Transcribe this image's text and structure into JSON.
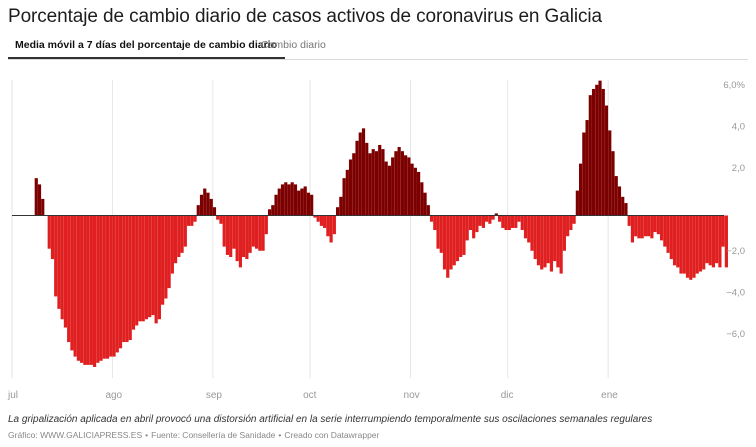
{
  "title": "Porcentaje de cambio diario de casos activos de coronavirus en Galicia",
  "tabs": [
    {
      "label": "Media móvil a 7 días del porcentaje de cambio diario",
      "active": true
    },
    {
      "label": "Cambio diario",
      "active": false
    }
  ],
  "note": "La gripalización aplicada en abril provocó una distorsión artificial en la serie interrumpiendo temporalmente sus oscilaciones semanales regulares",
  "footer": {
    "graphic": "Gráfico: WWW.GALICIAPRESS.ES",
    "source": "Fuente: Consellería de Sanidade",
    "credit": "Creado con Datawrapper",
    "separator": "•"
  },
  "colors": {
    "positive": "#7d0000",
    "negative": "#e02020",
    "gridline": "#e6e6e6",
    "axis_text": "#999999",
    "zero_line": "#333333"
  },
  "chart_data": {
    "type": "bar",
    "title": "Porcentaje de cambio diario de casos activos de coronavirus en Galicia",
    "series_name": "Media móvil a 7 días del porcentaje de cambio diario",
    "xlabel": "",
    "ylabel": "",
    "ylim": [
      -7.4,
      6.4
    ],
    "y_ticks": [
      {
        "value": 6,
        "label": "6,0%"
      },
      {
        "value": 4,
        "label": "4,0"
      },
      {
        "value": 2,
        "label": "2,0"
      },
      {
        "value": 0,
        "label": ""
      },
      {
        "value": -2,
        "label": "−2,0"
      },
      {
        "value": -4,
        "label": "−4,0"
      },
      {
        "value": -6,
        "label": "−6,0"
      }
    ],
    "x_ticks": [
      {
        "index": 0,
        "label": "jul"
      },
      {
        "index": 31,
        "label": "ago"
      },
      {
        "index": 62,
        "label": "sep"
      },
      {
        "index": 92,
        "label": "oct"
      },
      {
        "index": 123,
        "label": "nov"
      },
      {
        "index": 153,
        "label": "dic"
      },
      {
        "index": 184,
        "label": "ene"
      }
    ],
    "start": "jul",
    "values": [
      0,
      0,
      0,
      0,
      0,
      0,
      0,
      1.8,
      1.5,
      0.8,
      0,
      -1.6,
      -2.1,
      -3.9,
      -4.5,
      -5.0,
      -5.4,
      -6.1,
      -6.5,
      -6.8,
      -7.0,
      -7.1,
      -7.2,
      -7.2,
      -7.2,
      -7.3,
      -7.1,
      -7.0,
      -6.9,
      -6.9,
      -6.8,
      -6.8,
      -6.6,
      -6.4,
      -6.1,
      -6.1,
      -6.0,
      -5.5,
      -5.3,
      -5.1,
      -5.1,
      -5.0,
      -4.9,
      -4.8,
      -5.2,
      -5.0,
      -4.3,
      -4.0,
      -3.5,
      -2.8,
      -2.3,
      -2.0,
      -1.8,
      -1.5,
      -0.5,
      -0.5,
      -0.3,
      0.5,
      1.0,
      1.3,
      1.1,
      0.8,
      0.4,
      -0.2,
      -0.4,
      -1.5,
      -1.9,
      -2.0,
      -1.6,
      -2.2,
      -2.5,
      -2.0,
      -2.1,
      -1.8,
      -1.5,
      -1.6,
      -1.7,
      -1.7,
      -0.9,
      0.3,
      0.5,
      1.0,
      1.3,
      1.5,
      1.6,
      1.5,
      1.6,
      1.5,
      1.2,
      1.3,
      1.4,
      1.1,
      1.0,
      -0.1,
      -0.3,
      -0.5,
      -0.6,
      -1.0,
      -1.3,
      -0.9,
      0.4,
      0.9,
      1.8,
      2.2,
      2.7,
      3.0,
      3.6,
      4.0,
      4.2,
      3.5,
      3.0,
      3.2,
      3.1,
      3.4,
      3.2,
      2.6,
      2.4,
      2.8,
      3.1,
      3.3,
      3.1,
      2.9,
      2.8,
      2.5,
      2.3,
      2.1,
      1.6,
      1.1,
      0.5,
      -0.3,
      -0.7,
      -1.6,
      -1.8,
      -2.6,
      -3.0,
      -2.6,
      -2.4,
      -2.2,
      -2.0,
      -1.9,
      -1.2,
      -0.7,
      -1.1,
      -0.8,
      -0.5,
      -0.6,
      -0.3,
      -0.4,
      -0.2,
      0.1,
      -0.3,
      -0.6,
      -0.7,
      -0.7,
      -0.6,
      -0.6,
      -0.3,
      -0.7,
      -1.1,
      -1.3,
      -1.7,
      -2.1,
      -2.4,
      -2.6,
      -2.5,
      -2.3,
      -2.7,
      -2.2,
      -2.5,
      -2.8,
      -1.7,
      -1.0,
      -0.7,
      -0.4,
      1.2,
      2.5,
      4.0,
      4.6,
      5.8,
      6.1,
      6.3,
      6.5,
      6.1,
      5.3,
      4.1,
      3.1,
      1.9,
      1.4,
      0.9,
      0.6,
      -0.5,
      -1.3,
      -1.0,
      -1.1,
      -1.1,
      -1.0,
      -1.0,
      -1.1,
      -0.8,
      -0.9,
      -1.2,
      -1.5,
      -1.8,
      -2.1,
      -2.4,
      -2.5,
      -2.8,
      -2.8,
      -3.0,
      -3.1,
      -3.0,
      -2.8,
      -2.7,
      -2.6,
      -2.3,
      -2.4,
      -2.5,
      -2.3,
      -2.5,
      -1.5,
      -2.5
    ]
  }
}
